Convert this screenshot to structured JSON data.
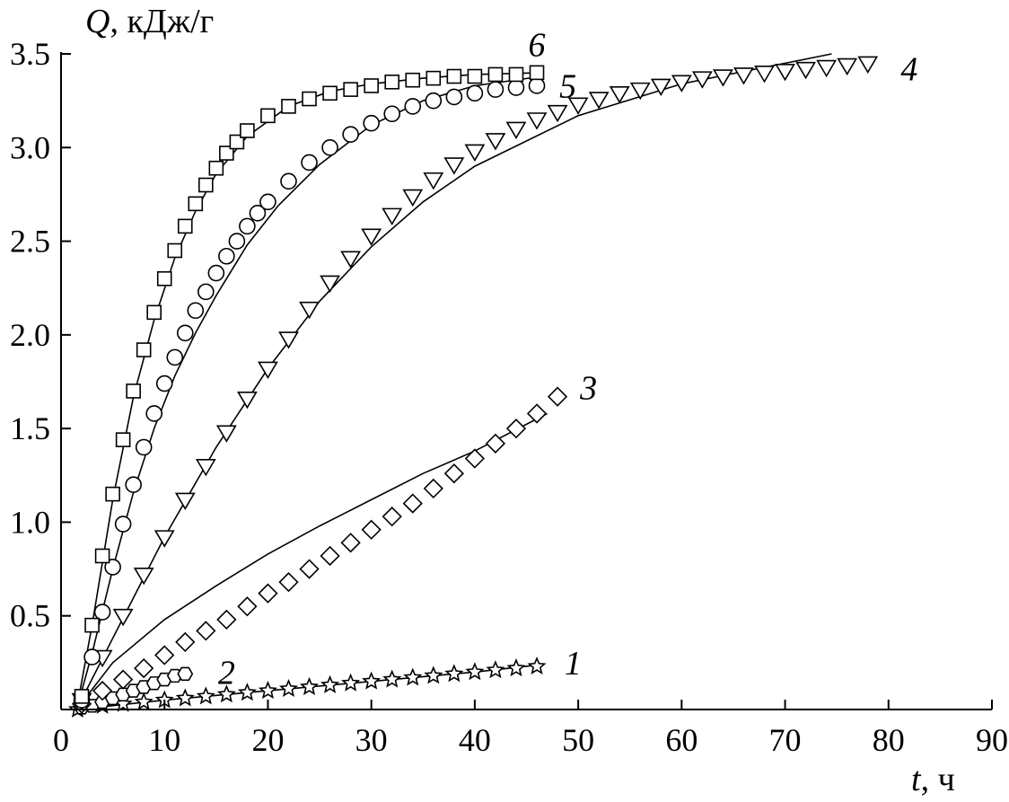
{
  "chart_data": {
    "type": "scatter",
    "ylabel": {
      "var": "Q",
      "unit": ", кДж/г"
    },
    "xlabel": {
      "var": "t",
      "unit": ", ч"
    },
    "xlim": [
      0,
      90
    ],
    "ylim": [
      0,
      3.5
    ],
    "x_ticks": [
      0,
      10,
      20,
      30,
      40,
      50,
      60,
      70,
      80,
      90
    ],
    "x_tick_labels": [
      "0",
      "10",
      "20",
      "30",
      "40",
      "50",
      "60",
      "70",
      "80",
      "90"
    ],
    "y_ticks": [
      0.5,
      1.0,
      1.5,
      2.0,
      2.5,
      3.0,
      3.5
    ],
    "y_tick_labels": [
      "0.5",
      "1.0",
      "1.5",
      "2.0",
      "2.5",
      "3.0",
      "3.5"
    ],
    "grid": false,
    "legend": "none",
    "series": [
      {
        "name": "1",
        "marker": "star",
        "label_at": {
          "x": 49.5,
          "y": 0.25
        },
        "x": [
          1.6,
          4,
          6,
          8,
          10,
          12,
          14,
          16,
          18,
          20,
          22,
          24,
          26,
          28,
          30,
          32,
          34,
          36,
          38,
          40,
          42,
          44,
          46
        ],
        "y": [
          0.0,
          0.02,
          0.03,
          0.04,
          0.05,
          0.06,
          0.07,
          0.08,
          0.09,
          0.1,
          0.11,
          0.12,
          0.13,
          0.14,
          0.15,
          0.16,
          0.17,
          0.18,
          0.19,
          0.2,
          0.21,
          0.22,
          0.23
        ],
        "fit": {
          "x": [
            1.5,
            10,
            20,
            30,
            40,
            46.5
          ],
          "y": [
            0.0,
            0.05,
            0.1,
            0.15,
            0.2,
            0.24
          ]
        }
      },
      {
        "name": "2",
        "marker": "hexagon",
        "label_at": {
          "x": 16,
          "y": 0.2
        },
        "x": [
          2,
          3,
          4,
          5,
          6,
          7,
          8,
          9,
          10,
          11,
          12
        ],
        "y": [
          0.01,
          0.02,
          0.04,
          0.06,
          0.08,
          0.1,
          0.12,
          0.14,
          0.16,
          0.18,
          0.19
        ],
        "fit": {
          "x": [
            1.5,
            4,
            7,
            10,
            12
          ],
          "y": [
            0.0,
            0.04,
            0.1,
            0.16,
            0.19
          ]
        }
      },
      {
        "name": "3",
        "marker": "diamond",
        "label_at": {
          "x": 51,
          "y": 1.72
        },
        "x": [
          2,
          4,
          6,
          8,
          10,
          12,
          14,
          16,
          18,
          20,
          22,
          24,
          26,
          28,
          30,
          32,
          34,
          36,
          38,
          40,
          42,
          44,
          46,
          48
        ],
        "y": [
          0.03,
          0.1,
          0.16,
          0.22,
          0.29,
          0.36,
          0.42,
          0.48,
          0.55,
          0.62,
          0.68,
          0.75,
          0.82,
          0.89,
          0.96,
          1.03,
          1.1,
          1.18,
          1.26,
          1.34,
          1.42,
          1.5,
          1.58,
          1.67
        ],
        "fit": {
          "x": [
            1.5,
            5,
            10,
            15,
            20,
            25,
            30,
            35,
            40,
            47
          ],
          "y": [
            0.0,
            0.25,
            0.48,
            0.66,
            0.83,
            0.98,
            1.12,
            1.26,
            1.38,
            1.58
          ]
        }
      },
      {
        "name": "4",
        "marker": "triangle-down",
        "label_at": {
          "x": 82,
          "y": 3.42
        },
        "x": [
          2,
          4,
          6,
          8,
          10,
          12,
          14,
          16,
          18,
          20,
          22,
          24,
          26,
          28,
          30,
          32,
          34,
          36,
          38,
          40,
          42,
          44,
          46,
          48,
          50,
          52,
          54,
          56,
          58,
          60,
          62,
          64,
          66,
          68,
          70,
          72,
          74,
          76,
          78
        ],
        "y": [
          0.05,
          0.28,
          0.5,
          0.72,
          0.92,
          1.12,
          1.3,
          1.48,
          1.66,
          1.82,
          1.98,
          2.14,
          2.28,
          2.41,
          2.53,
          2.64,
          2.74,
          2.83,
          2.91,
          2.98,
          3.04,
          3.1,
          3.15,
          3.19,
          3.23,
          3.26,
          3.29,
          3.31,
          3.33,
          3.35,
          3.37,
          3.38,
          3.39,
          3.4,
          3.41,
          3.42,
          3.43,
          3.44,
          3.45
        ],
        "fit": {
          "x": [
            1.5,
            5,
            10,
            15,
            20,
            25,
            30,
            35,
            40,
            50,
            60,
            70,
            74.5
          ],
          "y": [
            0.0,
            0.38,
            0.92,
            1.4,
            1.82,
            2.18,
            2.47,
            2.71,
            2.9,
            3.17,
            3.34,
            3.45,
            3.5
          ]
        }
      },
      {
        "name": "5",
        "marker": "circle",
        "label_at": {
          "x": 49,
          "y": 3.33
        },
        "x": [
          2,
          3,
          4,
          5,
          6,
          7,
          8,
          9,
          10,
          11,
          12,
          13,
          14,
          15,
          16,
          17,
          18,
          19,
          20,
          22,
          24,
          26,
          28,
          30,
          32,
          34,
          36,
          38,
          40,
          42,
          44,
          46
        ],
        "y": [
          0.05,
          0.28,
          0.52,
          0.76,
          0.99,
          1.2,
          1.4,
          1.58,
          1.74,
          1.88,
          2.01,
          2.13,
          2.23,
          2.33,
          2.42,
          2.5,
          2.58,
          2.65,
          2.71,
          2.82,
          2.92,
          3.0,
          3.07,
          3.13,
          3.18,
          3.22,
          3.25,
          3.27,
          3.29,
          3.31,
          3.32,
          3.33
        ],
        "fit": {
          "x": [
            1.5,
            3,
            5,
            7,
            9,
            11,
            13,
            15,
            18,
            21,
            25,
            30,
            35,
            40,
            46.5
          ],
          "y": [
            0.0,
            0.3,
            0.75,
            1.16,
            1.5,
            1.78,
            2.01,
            2.21,
            2.48,
            2.69,
            2.91,
            3.12,
            3.25,
            3.33,
            3.38
          ]
        }
      },
      {
        "name": "6",
        "marker": "square",
        "label_at": {
          "x": 46,
          "y": 3.55
        },
        "x": [
          2,
          3,
          4,
          5,
          6,
          7,
          8,
          9,
          10,
          11,
          12,
          13,
          14,
          15,
          16,
          17,
          18,
          20,
          22,
          24,
          26,
          28,
          30,
          32,
          34,
          36,
          38,
          40,
          42,
          44,
          46
        ],
        "y": [
          0.07,
          0.45,
          0.82,
          1.15,
          1.44,
          1.7,
          1.92,
          2.12,
          2.3,
          2.45,
          2.58,
          2.7,
          2.8,
          2.89,
          2.97,
          3.03,
          3.09,
          3.17,
          3.22,
          3.26,
          3.29,
          3.31,
          3.33,
          3.35,
          3.36,
          3.37,
          3.38,
          3.38,
          3.39,
          3.39,
          3.4
        ],
        "fit": {
          "x": [
            1.5,
            3,
            5,
            7,
            9,
            11,
            13,
            15,
            18,
            22,
            26,
            30,
            35,
            40,
            46.5
          ],
          "y": [
            0.0,
            0.45,
            1.12,
            1.67,
            2.08,
            2.41,
            2.66,
            2.86,
            3.06,
            3.22,
            3.3,
            3.34,
            3.37,
            3.39,
            3.4
          ]
        }
      }
    ]
  }
}
